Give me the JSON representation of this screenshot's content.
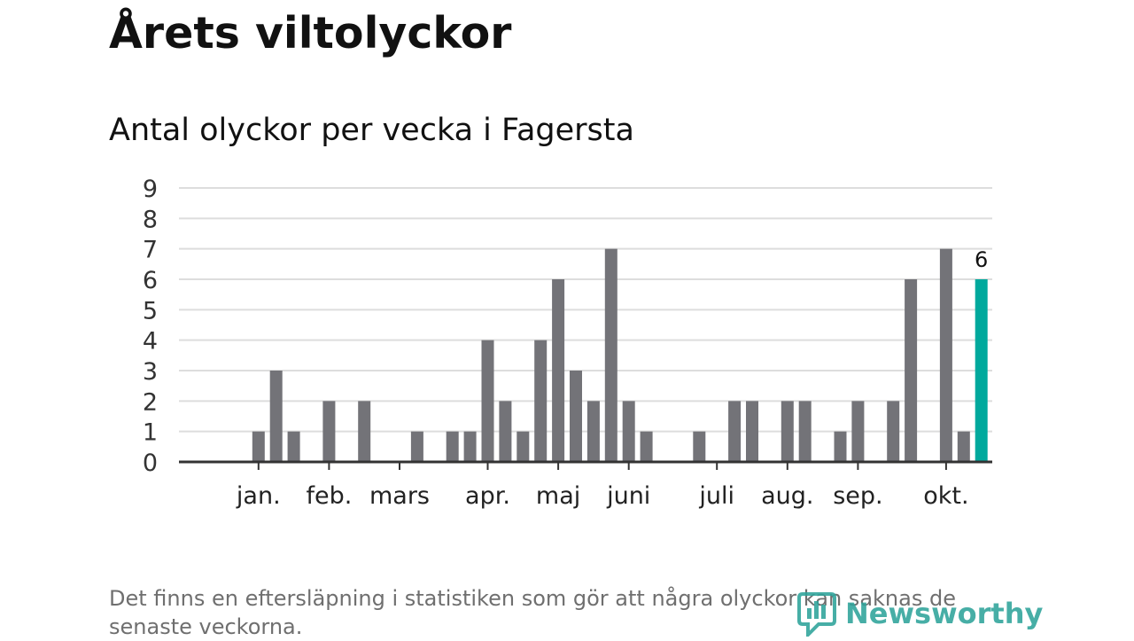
{
  "title": "Årets viltolyckor",
  "subtitle": "Antal olyckor per vecka i Fagersta",
  "footnote": "Det finns en eftersläpning i statistiken som gör att några olyckor kan saknas de senaste veckorna.",
  "logo_text": "Newsworthy",
  "colors": {
    "bar": "#737378",
    "highlight": "#00a99d",
    "grid": "#dddddd",
    "axis": "#333333",
    "logo": "#2ea39a"
  },
  "chart_data": {
    "type": "bar",
    "title": "Antal olyckor per vecka i Fagersta",
    "xlabel": "",
    "ylabel": "",
    "ylim": [
      0,
      9
    ],
    "yticks": [
      0,
      1,
      2,
      3,
      4,
      5,
      6,
      7,
      8,
      9
    ],
    "grid": true,
    "weeks": [
      1,
      2,
      3,
      4,
      5,
      6,
      7,
      8,
      9,
      10,
      11,
      12,
      13,
      14,
      15,
      16,
      17,
      18,
      19,
      20,
      21,
      22,
      23,
      24,
      25,
      26,
      27,
      28,
      29,
      30,
      31,
      32,
      33,
      34,
      35,
      36,
      37,
      38,
      39,
      40,
      41,
      42,
      43,
      44
    ],
    "values": [
      0,
      0,
      1,
      3,
      1,
      0,
      2,
      0,
      2,
      0,
      0,
      1,
      0,
      1,
      1,
      4,
      2,
      1,
      4,
      6,
      3,
      2,
      7,
      2,
      1,
      0,
      0,
      1,
      0,
      2,
      2,
      0,
      2,
      2,
      0,
      1,
      2,
      0,
      2,
      6,
      0,
      7,
      1,
      6
    ],
    "highlight_index": 43,
    "highlight_label": "6",
    "month_labels": [
      {
        "label": "jan.",
        "week": 3
      },
      {
        "label": "feb.",
        "week": 7
      },
      {
        "label": "mars",
        "week": 11
      },
      {
        "label": "apr.",
        "week": 16
      },
      {
        "label": "maj",
        "week": 20
      },
      {
        "label": "juni",
        "week": 24
      },
      {
        "label": "juli",
        "week": 29
      },
      {
        "label": "aug.",
        "week": 33
      },
      {
        "label": "sep.",
        "week": 37
      },
      {
        "label": "okt.",
        "week": 42
      }
    ]
  }
}
